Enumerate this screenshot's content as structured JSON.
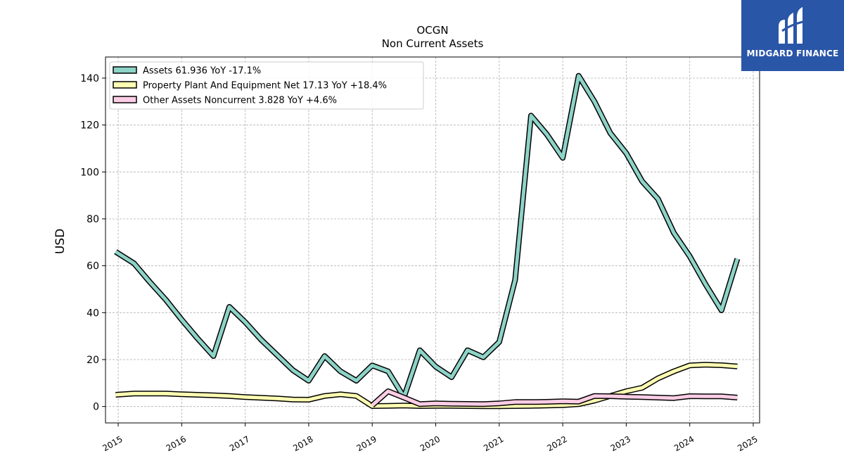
{
  "brand": {
    "name": "MIDGARD FINANCE",
    "bg_color": "#2a56a8"
  },
  "chart_data": {
    "type": "line",
    "title": "OCGN",
    "subtitle": "Non Current  Assets",
    "ylabel": "USD",
    "xlabel": "",
    "xlim": [
      2014.8,
      2025.1
    ],
    "ylim": [
      -7,
      149
    ],
    "yticks": [
      0,
      20,
      40,
      60,
      80,
      100,
      120,
      140
    ],
    "xticks": [
      "2015",
      "2016",
      "2017",
      "2018",
      "2019",
      "2020",
      "2021",
      "2022",
      "2023",
      "2024",
      "2025"
    ],
    "grid": true,
    "legend_position": "top-left",
    "series": [
      {
        "name": "Assets",
        "legend": "Assets  61.936 YoY -17.1%",
        "color": "#8dd3c7",
        "x": [
          2014.96,
          2015.25,
          2015.5,
          2015.75,
          2016.0,
          2016.25,
          2016.5,
          2016.75,
          2017.0,
          2017.25,
          2017.5,
          2017.75,
          2018.0,
          2018.25,
          2018.5,
          2018.75,
          2019.0,
          2019.25,
          2019.5,
          2019.75,
          2020.0,
          2020.25,
          2020.5,
          2020.75,
          2021.0,
          2021.25,
          2021.5,
          2021.75,
          2022.0,
          2022.25,
          2022.5,
          2022.75,
          2023.0,
          2023.25,
          2023.5,
          2023.75,
          2024.0,
          2024.25,
          2024.5,
          2024.75
        ],
        "values": [
          66,
          61,
          53,
          45.5,
          37,
          29,
          21.5,
          42.5,
          36,
          28.5,
          22,
          15.5,
          11,
          21.5,
          15,
          11,
          17.5,
          15,
          4,
          24,
          17,
          12.5,
          24,
          21,
          27.5,
          54,
          124,
          116,
          106,
          141,
          130,
          116.5,
          108,
          96,
          88.5,
          74,
          64,
          52,
          41,
          63
        ]
      },
      {
        "name": "Property Plant And Equipment Net",
        "legend": "Property Plant And Equipment Net  17.13 YoY +18.4%",
        "color": "#ffffb3",
        "x": [
          2014.96,
          2015.25,
          2015.5,
          2015.75,
          2016.0,
          2016.25,
          2016.5,
          2016.75,
          2017.0,
          2017.25,
          2017.5,
          2017.75,
          2018.0,
          2018.25,
          2018.5,
          2018.75,
          2019.0,
          2019.25,
          2019.5,
          2019.75,
          2020.0,
          2020.25,
          2020.5,
          2020.75,
          2021.0,
          2021.25,
          2021.5,
          2021.75,
          2022.0,
          2022.25,
          2022.5,
          2022.75,
          2023.0,
          2023.25,
          2023.5,
          2023.75,
          2024.0,
          2024.25,
          2024.5,
          2024.75
        ],
        "values": [
          5,
          5.5,
          5.5,
          5.5,
          5.2,
          5.0,
          4.8,
          4.5,
          4.0,
          3.7,
          3.4,
          3.0,
          2.9,
          4.5,
          5.2,
          4.5,
          0.2,
          0.3,
          0.4,
          0.2,
          0.3,
          0.3,
          0.2,
          0.1,
          0.1,
          0.2,
          0.3,
          0.4,
          0.6,
          1.0,
          2.5,
          4.5,
          6.5,
          8.0,
          12,
          15,
          17.5,
          17.8,
          17.6,
          17.1
        ]
      },
      {
        "name": "Other Assets Noncurrent",
        "legend": "Other Assets Noncurrent  3.828 YoY +4.6%",
        "color": "#fccde5",
        "x": [
          2019.0,
          2019.25,
          2019.5,
          2019.75,
          2020.0,
          2020.25,
          2020.5,
          2020.75,
          2021.0,
          2021.25,
          2021.5,
          2021.75,
          2022.0,
          2022.25,
          2022.5,
          2022.75,
          2023.0,
          2023.25,
          2023.5,
          2023.75,
          2024.0,
          2024.25,
          2024.5,
          2024.75
        ],
        "values": [
          0.5,
          6.5,
          3.8,
          1.0,
          1.3,
          1.2,
          1.1,
          1.0,
          1.3,
          1.9,
          1.9,
          2.0,
          2.2,
          2.1,
          4.5,
          4.4,
          4.2,
          4.0,
          3.8,
          3.6,
          4.4,
          4.3,
          4.3,
          3.8
        ]
      }
    ]
  }
}
